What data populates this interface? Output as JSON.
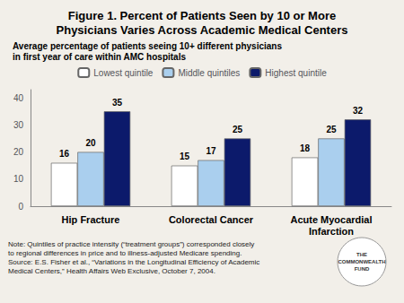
{
  "chart_data": {
    "type": "bar",
    "title": "Figure 1. Percent of Patients Seen by 10 or More\nPhysicians Varies Across Academic Medical Centers",
    "subtitle": "Average percentage of patients seeing 10+ different physicians\nin first year of care within AMC hospitals",
    "categories": [
      "Hip Fracture",
      "Colorectal Cancer",
      "Acute Myocardial\nInfarction"
    ],
    "series": [
      {
        "name": "Lowest quintile",
        "color": "#ffffff",
        "values": [
          16,
          15,
          18
        ]
      },
      {
        "name": "Middle quintiles",
        "color": "#aacfee",
        "values": [
          20,
          17,
          25
        ]
      },
      {
        "name": "Highest quintile",
        "color": "#0c1a6b",
        "values": [
          35,
          25,
          32
        ]
      }
    ],
    "ylim": [
      0,
      43
    ],
    "yticks": [
      0,
      10,
      20,
      30,
      40
    ],
    "grid": false,
    "legend": "top",
    "data_labels": true,
    "annotations": [
      "Note: Quintiles of practice intensity (“treatment groups”) corresponded closely",
      "to regional differences in price and to illness-adjusted Medicare spending.",
      "Source: E.S. Fisher et al., “Variations in the Longitudinal Efficiency of Academic",
      "Medical Centers,” Health Affairs Web Exclusive, October 7, 2004.",
      "THE\nCOMMONWEALTH\nFUND"
    ]
  }
}
